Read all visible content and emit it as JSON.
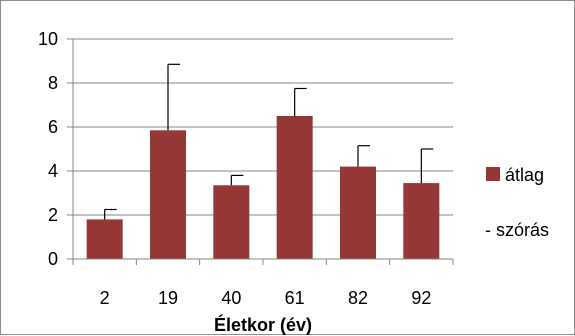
{
  "chart_data": {
    "type": "bar",
    "categories": [
      "2",
      "19",
      "40",
      "61",
      "82",
      "92"
    ],
    "series": [
      {
        "name": "átlag",
        "values": [
          1.8,
          5.85,
          3.35,
          6.5,
          4.2,
          3.45
        ],
        "errors": [
          0.45,
          3.0,
          0.45,
          1.25,
          0.95,
          1.55
        ]
      }
    ],
    "xlabel": "Életkor (év)",
    "ylabel": "",
    "ylim": [
      0,
      10
    ],
    "yticks": [
      "0",
      "2",
      "4",
      "6",
      "8",
      "10"
    ],
    "grid": true,
    "legend": {
      "position": "right",
      "mean_label": "átlag",
      "sd_label": "szórás",
      "sd_marker": "-"
    },
    "colors": {
      "bar": "#953735",
      "grid": "#868686",
      "axis": "#868686",
      "error": "#000000"
    }
  }
}
